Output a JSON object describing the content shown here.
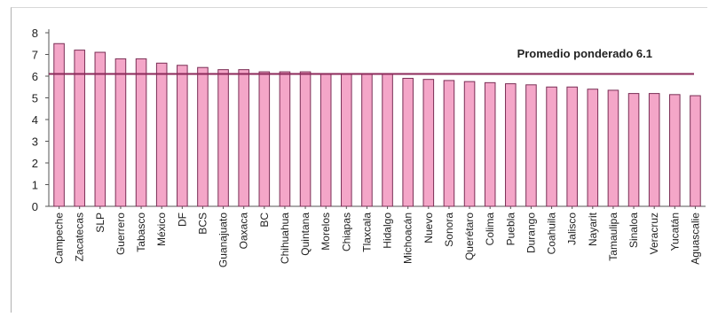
{
  "chart_data": {
    "type": "bar",
    "title": "",
    "xlabel": "",
    "ylabel": "",
    "ylim": [
      0,
      8
    ],
    "yticks": [
      "0",
      "1",
      "2",
      "3",
      "4",
      "5",
      "6",
      "7",
      "8"
    ],
    "grid": false,
    "categories": [
      "Campeche",
      "Zacatecas",
      "SLP",
      "Guerrero",
      "Tabasco",
      "México",
      "DF",
      "BCS",
      "Guanajuato",
      "Oaxaca",
      "BC",
      "Chihuahua",
      "Quintana",
      "Morelos",
      "Chiapas",
      "Tlaxcala",
      "Hidalgo",
      "Michoacán",
      "Nuevo",
      "Sonora",
      "Querétaro",
      "Colima",
      "Puebla",
      "Durango",
      "Coahuila",
      "Jalisco",
      "Nayarit",
      "Tamaulipa",
      "Sinaloa",
      "Veracruz",
      "Yucatán",
      "Aguascalie"
    ],
    "values": [
      7.5,
      7.2,
      7.1,
      6.8,
      6.8,
      6.6,
      6.5,
      6.4,
      6.3,
      6.3,
      6.2,
      6.2,
      6.2,
      6.1,
      6.1,
      6.1,
      6.1,
      5.9,
      5.85,
      5.8,
      5.75,
      5.7,
      5.65,
      5.6,
      5.5,
      5.5,
      5.4,
      5.35,
      5.2,
      5.2,
      5.15,
      5.1
    ],
    "reference_line": {
      "value": 6.1,
      "label": "Promedio ponderado 6.1"
    },
    "colors": {
      "bar_fill": "#f4a6c8",
      "bar_stroke": "#7a2e55",
      "reference_line": "#8c2a5a",
      "axis": "#555555"
    }
  }
}
